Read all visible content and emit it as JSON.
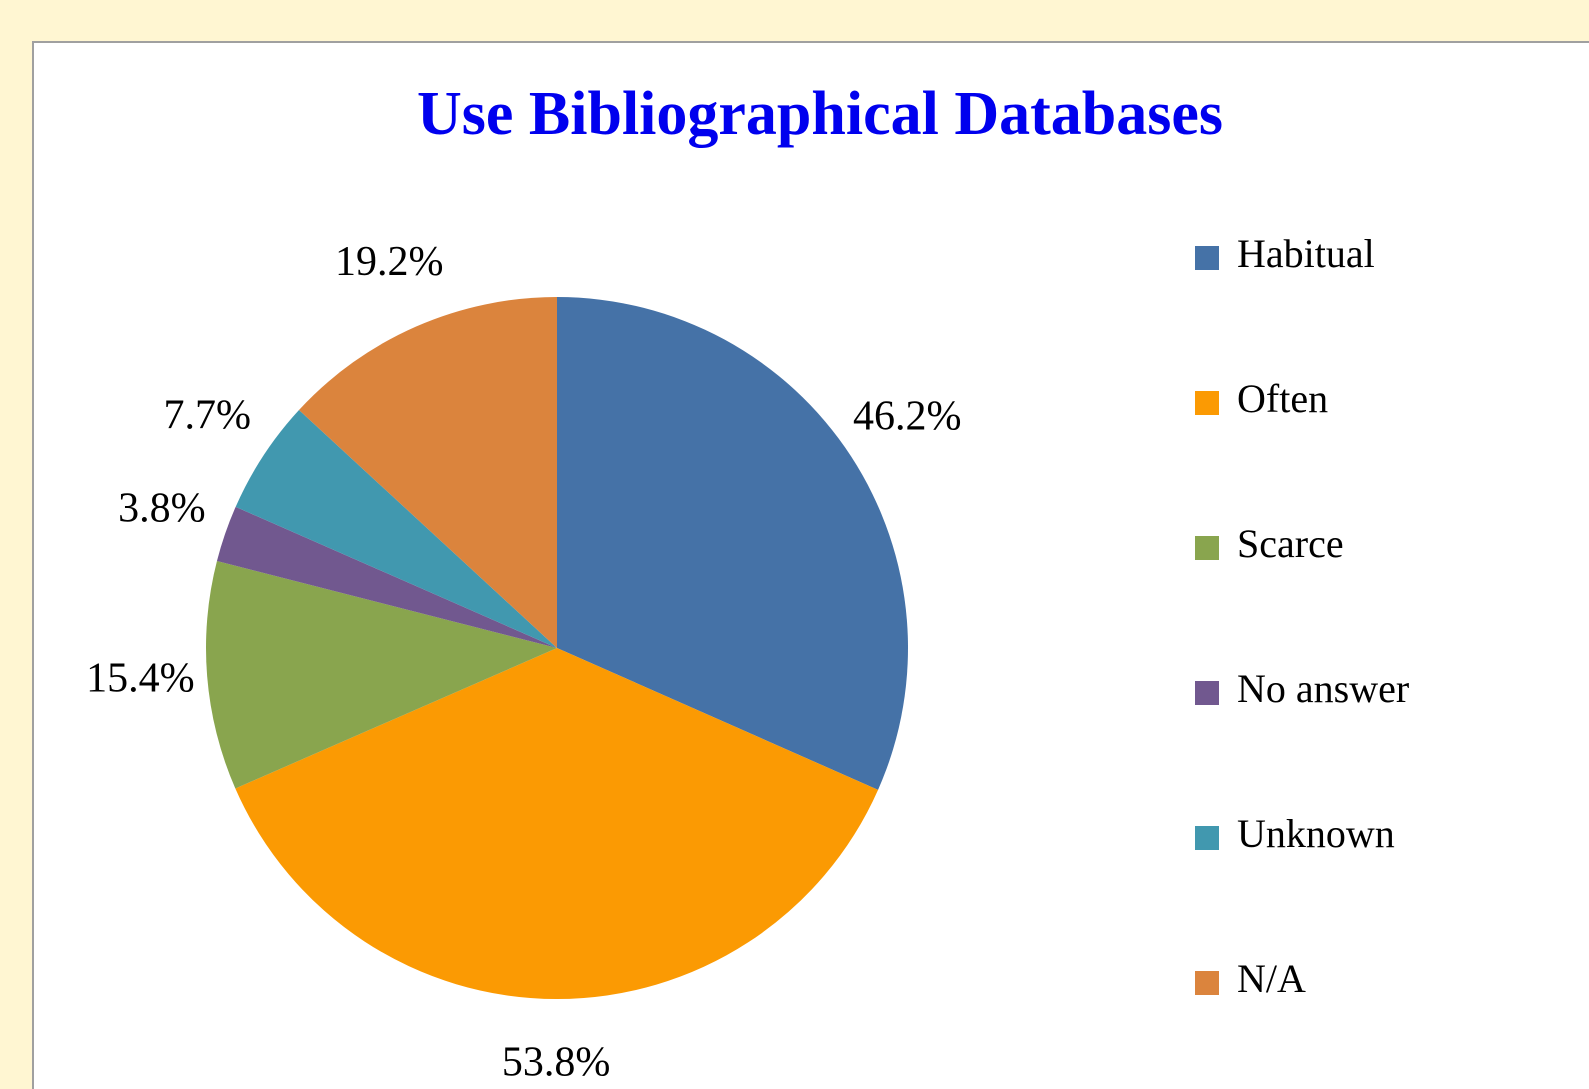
{
  "chart_data": {
    "type": "pie",
    "title": "Use Bibliographical Databases",
    "categories": [
      "Habitual",
      "Often",
      "Scarce",
      "No answer",
      "Unknown",
      "N/A"
    ],
    "values": [
      46.2,
      53.8,
      15.4,
      3.8,
      7.7,
      19.2
    ],
    "value_labels": [
      "46.2%",
      "53.8%",
      "15.4%",
      "3.8%",
      "7.7%",
      "19.2%"
    ],
    "colors": [
      "#4572a7",
      "#fb9a03",
      "#89a54e",
      "#71588f",
      "#4198af",
      "#db843d"
    ],
    "legend": "right"
  }
}
